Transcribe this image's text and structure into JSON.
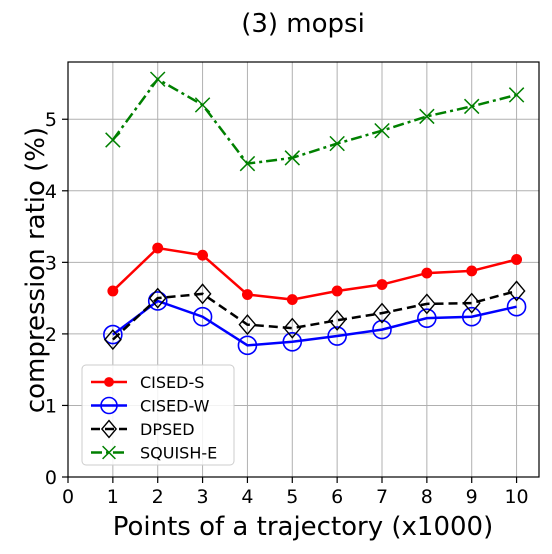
{
  "chart_data": {
    "type": "line",
    "title": "(3) mopsi",
    "xlabel": "Points of a trajectory (x1000)",
    "ylabel": "compression ratio (%)",
    "xlim": [
      0,
      10.5
    ],
    "ylim": [
      0,
      5.8
    ],
    "xticks": [
      "0",
      "1",
      "2",
      "3",
      "4",
      "5",
      "6",
      "7",
      "8",
      "9",
      "10"
    ],
    "yticks": [
      "0",
      "1",
      "2",
      "3",
      "4",
      "5"
    ],
    "grid": true,
    "legend_position": "lower-left",
    "x": [
      1,
      2,
      3,
      4,
      5,
      6,
      7,
      8,
      9,
      10
    ],
    "series": [
      {
        "name": "CISED-S",
        "color": "#ff0000",
        "line_style": "solid",
        "marker": "filled-circle",
        "values": [
          2.6,
          3.2,
          3.1,
          2.55,
          2.48,
          2.6,
          2.69,
          2.85,
          2.88,
          3.04
        ]
      },
      {
        "name": "CISED-W",
        "color": "#0000ff",
        "line_style": "solid",
        "marker": "open-circle",
        "values": [
          1.99,
          2.46,
          2.24,
          1.84,
          1.89,
          1.97,
          2.06,
          2.22,
          2.24,
          2.38
        ]
      },
      {
        "name": "DPSED",
        "color": "#000000",
        "line_style": "dashed",
        "marker": "open-diamond",
        "values": [
          1.92,
          2.5,
          2.56,
          2.13,
          2.08,
          2.19,
          2.29,
          2.42,
          2.43,
          2.6
        ]
      },
      {
        "name": "SQUISH-E",
        "color": "#008000",
        "line_style": "dashdot",
        "marker": "x",
        "values": [
          4.71,
          5.56,
          5.2,
          4.38,
          4.46,
          4.66,
          4.84,
          5.04,
          5.18,
          5.34
        ]
      }
    ]
  }
}
